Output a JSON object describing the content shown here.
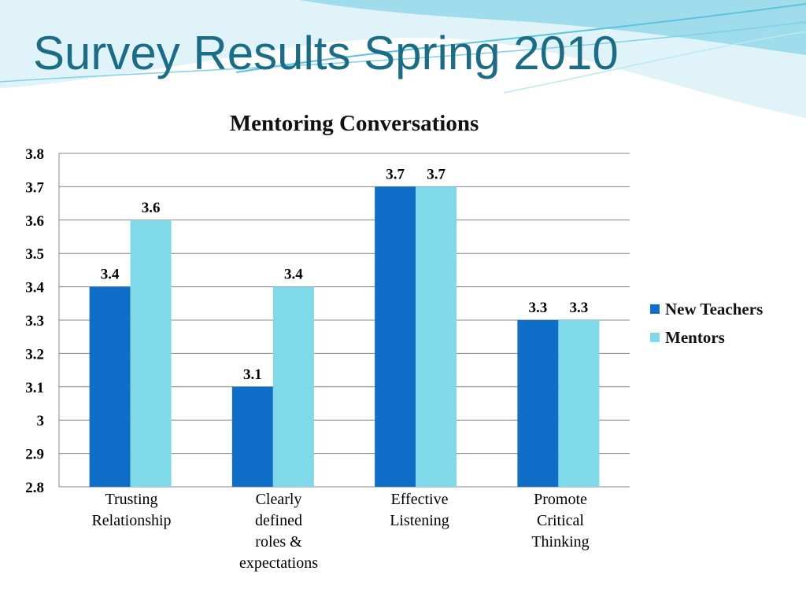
{
  "slide": {
    "title": "Survey Results Spring 2010"
  },
  "colors": {
    "new_teachers": "#0f6ec8",
    "mentors": "#7fd9e8",
    "title": "#1b6d87",
    "wave_light": "#bfe8f2",
    "wave_mid": "#5cc4de"
  },
  "chart_data": {
    "type": "bar",
    "title": "Mentoring Conversations",
    "categories": [
      [
        "Trusting",
        "Relationship"
      ],
      [
        "Clearly",
        "defined",
        "roles &",
        "expectations"
      ],
      [
        "Effective",
        "Listening"
      ],
      [
        "Promote",
        "Critical",
        "Thinking"
      ]
    ],
    "series": [
      {
        "name": "New Teachers",
        "values": [
          3.4,
          3.1,
          3.7,
          3.3
        ],
        "data_labels": [
          "3.4",
          "3.1",
          "3.7",
          "3.3"
        ]
      },
      {
        "name": "Mentors",
        "values": [
          3.6,
          3.4,
          3.7,
          3.3
        ],
        "data_labels": [
          "3.6",
          "3.4",
          "3.7",
          "3.3"
        ]
      }
    ],
    "ylim": [
      2.8,
      3.8
    ],
    "yticks": [
      "2.8",
      "2.9",
      "3",
      "3.1",
      "3.2",
      "3.3",
      "3.4",
      "3.5",
      "3.6",
      "3.7",
      "3.8"
    ],
    "grid": true,
    "legend": "right"
  }
}
